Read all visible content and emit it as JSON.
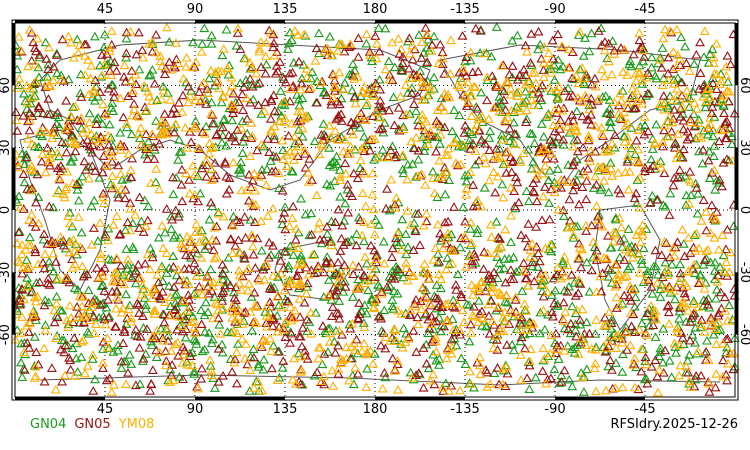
{
  "map": {
    "projection": "cylindrical-equidistant",
    "lon_ticks": [
      "45",
      "90",
      "135",
      "180",
      "-135",
      "-90",
      "-45"
    ],
    "lon_tick_values": [
      45,
      90,
      135,
      180,
      225,
      270,
      315
    ],
    "lat_ticks": [
      "60",
      "30",
      "0",
      "-30",
      "-60"
    ],
    "lat_tick_values": [
      60,
      30,
      0,
      -30,
      -60
    ],
    "grid": "dotted",
    "coastline_color": "#555555",
    "marker": "triangle-outline"
  },
  "legend": {
    "items": [
      {
        "label": "GN04",
        "color": "#1a9a1a"
      },
      {
        "label": "GN05",
        "color": "#9a1010"
      },
      {
        "label": "YM08",
        "color": "#ffb000"
      }
    ]
  },
  "run_label": "RFSIdry.2025-12-26"
}
